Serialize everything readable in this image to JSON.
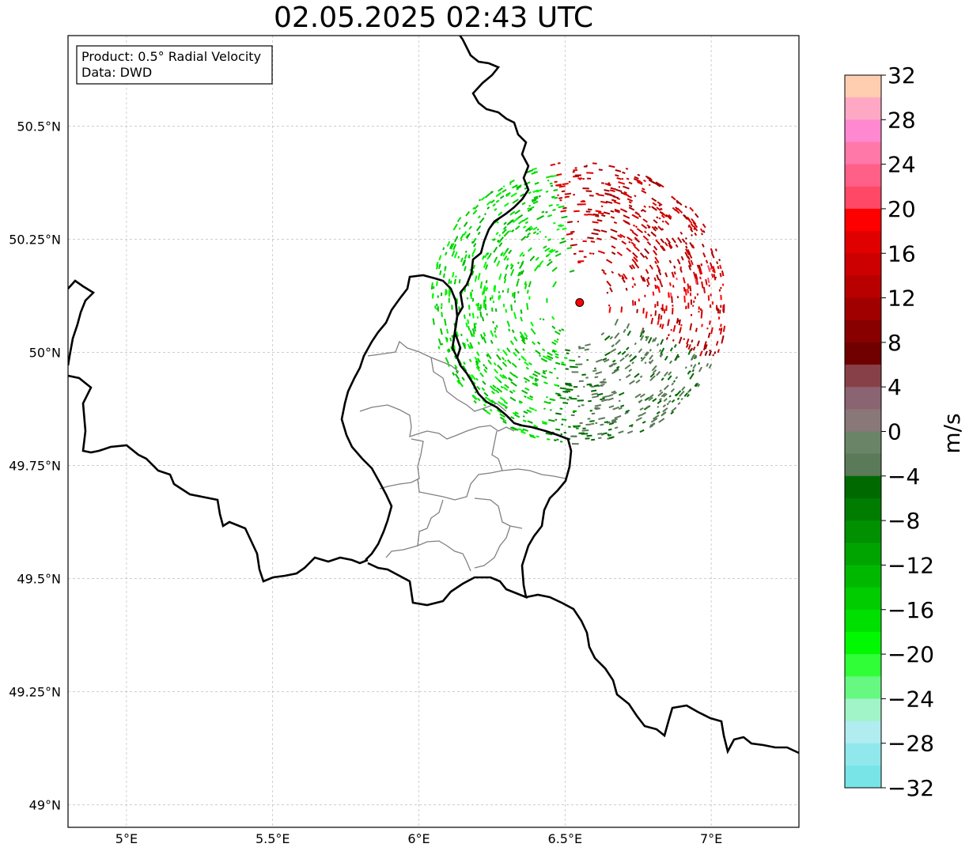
{
  "title": "02.05.2025 02:43 UTC",
  "info_box": {
    "line1": "Product: 0.5° Radial Velocity",
    "line2": "Data: DWD"
  },
  "map": {
    "lon_range": [
      4.8,
      7.3
    ],
    "lat_range": [
      48.95,
      50.7
    ],
    "x_ticks": [
      {
        "value": 5.0,
        "label": "5°E"
      },
      {
        "value": 5.5,
        "label": "5.5°E"
      },
      {
        "value": 6.0,
        "label": "6°E"
      },
      {
        "value": 6.5,
        "label": "6.5°E"
      },
      {
        "value": 7.0,
        "label": "7°E"
      }
    ],
    "y_ticks": [
      {
        "value": 50.5,
        "label": "50.5°N"
      },
      {
        "value": 50.25,
        "label": "50.25°N"
      },
      {
        "value": 50.0,
        "label": "50°N"
      },
      {
        "value": 49.75,
        "label": "49.75°N"
      },
      {
        "value": 49.5,
        "label": "49.5°N"
      },
      {
        "value": 49.25,
        "label": "49.25°N"
      },
      {
        "value": 49.0,
        "label": "49°N"
      }
    ],
    "radar_site": {
      "lon": 6.55,
      "lat": 50.11,
      "color": "#ff0000"
    },
    "grid": true
  },
  "colorbar": {
    "unit": "m/s",
    "range": [
      -32,
      32
    ],
    "step": 2,
    "tick_values": [
      32,
      28,
      24,
      20,
      16,
      12,
      8,
      4,
      0,
      -4,
      -8,
      -12,
      -16,
      -20,
      -24,
      -28,
      -32
    ],
    "tick_labels": [
      "32",
      "28",
      "24",
      "20",
      "16",
      "12",
      "8",
      "4",
      "0",
      "−4",
      "−8",
      "−12",
      "−16",
      "−20",
      "−24",
      "−28",
      "−32"
    ],
    "colors_top_to_bottom": [
      "#ffcdb0",
      "#ffa8c4",
      "#ff88d0",
      "#ff78a8",
      "#ff6088",
      "#ff4866",
      "#ff0000",
      "#e00000",
      "#cc0000",
      "#b80000",
      "#a00000",
      "#880000",
      "#700000",
      "#884048",
      "#8a6470",
      "#8a7878",
      "#6a8468",
      "#5a7a58",
      "#006a00",
      "#007c00",
      "#009000",
      "#00a400",
      "#00b800",
      "#00cc00",
      "#00e000",
      "#00f800",
      "#30ff38",
      "#66f880",
      "#a0f4c8",
      "#b0ecf0",
      "#90e8ec",
      "#78e4e8"
    ]
  }
}
